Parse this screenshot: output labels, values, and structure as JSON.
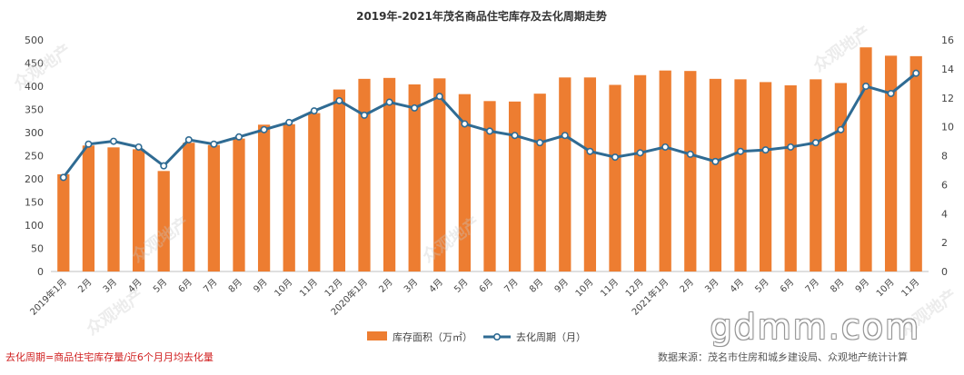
{
  "chart_data": {
    "type": "bar+line",
    "title": "2019年-2021年茂名商品住宅库存及去化周期走势",
    "categories": [
      "2019年1月",
      "2月",
      "3月",
      "4月",
      "5月",
      "6月",
      "7月",
      "8月",
      "9月",
      "10月",
      "11月",
      "12月",
      "2020年1月",
      "2月",
      "3月",
      "4月",
      "5月",
      "6月",
      "7月",
      "8月",
      "9月",
      "10月",
      "11月",
      "12月",
      "2021年1月",
      "2月",
      "3月",
      "4月",
      "5月",
      "6月",
      "7月",
      "8月",
      "9月",
      "10月",
      "11月"
    ],
    "series": [
      {
        "name": "库存面积（万㎡）",
        "type": "bar",
        "axis": "left",
        "color": "#ED7D31",
        "values": [
          210,
          272,
          268,
          264,
          217,
          278,
          273,
          287,
          317,
          318,
          342,
          393,
          416,
          418,
          404,
          417,
          383,
          368,
          367,
          384,
          419,
          419,
          403,
          424,
          434,
          433,
          416,
          415,
          409,
          402,
          415,
          407,
          484,
          466,
          465
        ]
      },
      {
        "name": "去化周期（月）",
        "type": "line",
        "axis": "right",
        "color": "#2F6B93",
        "values": [
          6.5,
          8.8,
          9.0,
          8.6,
          7.3,
          9.1,
          8.8,
          9.3,
          9.8,
          10.3,
          11.1,
          11.8,
          10.8,
          11.7,
          11.3,
          12.1,
          10.2,
          9.7,
          9.4,
          8.9,
          9.4,
          8.3,
          7.9,
          8.2,
          8.6,
          8.1,
          7.6,
          8.3,
          8.4,
          8.6,
          8.9,
          9.8,
          12.8,
          12.3,
          13.7
        ]
      }
    ],
    "y_left": {
      "ylim": [
        0,
        500
      ],
      "ticks": [
        0,
        50,
        100,
        150,
        200,
        250,
        300,
        350,
        400,
        450,
        500
      ]
    },
    "y_right": {
      "ylim": [
        0,
        16
      ],
      "ticks": [
        0,
        2,
        4,
        6,
        8,
        10,
        12,
        14,
        16
      ]
    },
    "grid": false,
    "legend_position": "bottom"
  },
  "watermarks": {
    "items": [
      "众观地产",
      "众观地产",
      "众观地产",
      "众观地产",
      "众观地产",
      "众观地产"
    ],
    "site": "gdmm.com"
  },
  "footnotes": {
    "left": "去化周期=商品住宅库存量/近6个月月均去化量",
    "right": "数据来源：茂名市住房和城乡建设局、众观地产统计计算"
  }
}
